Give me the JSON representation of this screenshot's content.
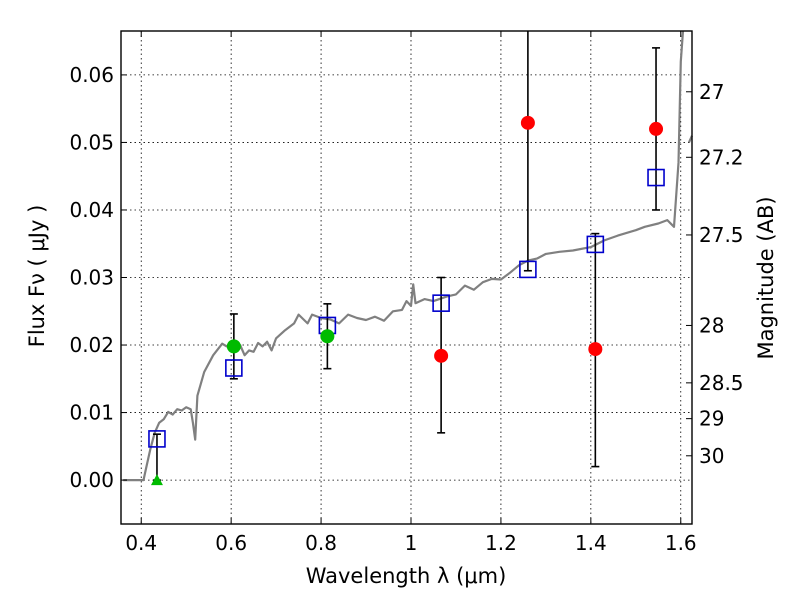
{
  "chart_data": {
    "type": "scatter",
    "xlabel": "Wavelength  λ (μm)",
    "ylabel": "Flux  Fν  ( μJy )",
    "ylabel_right": "Magnitude (AB)",
    "xlim": [
      0.355,
      1.625
    ],
    "ylim": [
      -0.0065,
      0.0665
    ],
    "grid": true,
    "x_ticks": [
      {
        "value": 0.4,
        "label": "0.4"
      },
      {
        "value": 0.6,
        "label": "0.6"
      },
      {
        "value": 0.8,
        "label": "0.8"
      },
      {
        "value": 1.0,
        "label": "1"
      },
      {
        "value": 1.2,
        "label": "1.2"
      },
      {
        "value": 1.4,
        "label": "1.4"
      },
      {
        "value": 1.6,
        "label": "1.6"
      }
    ],
    "y_ticks": [
      {
        "value": 0.0,
        "label": "0.00"
      },
      {
        "value": 0.01,
        "label": "0.01"
      },
      {
        "value": 0.02,
        "label": "0.02"
      },
      {
        "value": 0.03,
        "label": "0.03"
      },
      {
        "value": 0.04,
        "label": "0.04"
      },
      {
        "value": 0.05,
        "label": "0.05"
      },
      {
        "value": 0.06,
        "label": "0.06"
      }
    ],
    "right_ticks": [
      {
        "label": "27",
        "flux": 0.0575
      },
      {
        "label": "27.2",
        "flux": 0.0478
      },
      {
        "label": "27.5",
        "flux": 0.0363
      },
      {
        "label": "28",
        "flux": 0.0229
      },
      {
        "label": "28.5",
        "flux": 0.0144
      },
      {
        "label": "29",
        "flux": 0.0091
      },
      {
        "label": "30",
        "flux": 0.0036
      }
    ],
    "colors": {
      "observed": "#ff0000",
      "observed_alt": "#00bb00",
      "model_box": "#0000cc",
      "sed": "#808080",
      "errorbar": "#000000"
    },
    "model_points": [
      {
        "x": 0.435,
        "y": 0.0061
      },
      {
        "x": 0.606,
        "y": 0.0166
      },
      {
        "x": 0.814,
        "y": 0.0229
      },
      {
        "x": 1.067,
        "y": 0.0262
      },
      {
        "x": 1.26,
        "y": 0.0312
      },
      {
        "x": 1.41,
        "y": 0.0349
      },
      {
        "x": 1.545,
        "y": 0.0448
      }
    ],
    "observed_points": [
      {
        "x": 0.435,
        "y": 0.0,
        "err_low": 0.0,
        "err_high": 0.0068,
        "marker": "triangle",
        "color": "#00bb00"
      },
      {
        "x": 0.606,
        "y": 0.0198,
        "err_low": 0.0048,
        "err_high": 0.0048,
        "marker": "circle",
        "color": "#00bb00"
      },
      {
        "x": 0.814,
        "y": 0.0213,
        "err_low": 0.0048,
        "err_high": 0.0048,
        "marker": "circle",
        "color": "#00bb00"
      },
      {
        "x": 1.067,
        "y": 0.0184,
        "err_low": 0.0114,
        "err_high": 0.0116,
        "marker": "circle",
        "color": "#ff0000"
      },
      {
        "x": 1.26,
        "y": 0.0529,
        "err_low": 0.0219,
        "err_high": 0.0211,
        "marker": "circle",
        "color": "#ff0000"
      },
      {
        "x": 1.41,
        "y": 0.0194,
        "err_low": 0.0174,
        "err_high": 0.0171,
        "marker": "circle",
        "color": "#ff0000"
      },
      {
        "x": 1.545,
        "y": 0.052,
        "err_low": 0.012,
        "err_high": 0.012,
        "marker": "circle",
        "color": "#ff0000"
      }
    ],
    "sed_curve": [
      [
        0.36,
        0.0
      ],
      [
        0.385,
        0.0
      ],
      [
        0.405,
        0.0
      ],
      [
        0.41,
        0.0015
      ],
      [
        0.42,
        0.0045
      ],
      [
        0.43,
        0.007
      ],
      [
        0.44,
        0.0085
      ],
      [
        0.45,
        0.009
      ],
      [
        0.46,
        0.0101
      ],
      [
        0.47,
        0.0097
      ],
      [
        0.48,
        0.0105
      ],
      [
        0.49,
        0.0103
      ],
      [
        0.5,
        0.0108
      ],
      [
        0.51,
        0.0105
      ],
      [
        0.515,
        0.0085
      ],
      [
        0.52,
        0.006
      ],
      [
        0.525,
        0.0125
      ],
      [
        0.54,
        0.016
      ],
      [
        0.56,
        0.0185
      ],
      [
        0.58,
        0.0202
      ],
      [
        0.59,
        0.0198
      ],
      [
        0.6,
        0.0205
      ],
      [
        0.61,
        0.0195
      ],
      [
        0.62,
        0.02
      ],
      [
        0.63,
        0.0185
      ],
      [
        0.64,
        0.0192
      ],
      [
        0.65,
        0.019
      ],
      [
        0.66,
        0.0203
      ],
      [
        0.67,
        0.0198
      ],
      [
        0.68,
        0.0205
      ],
      [
        0.69,
        0.0192
      ],
      [
        0.7,
        0.021
      ],
      [
        0.72,
        0.0222
      ],
      [
        0.74,
        0.0232
      ],
      [
        0.75,
        0.0245
      ],
      [
        0.77,
        0.0232
      ],
      [
        0.78,
        0.0245
      ],
      [
        0.8,
        0.024
      ],
      [
        0.82,
        0.0238
      ],
      [
        0.84,
        0.0232
      ],
      [
        0.86,
        0.0245
      ],
      [
        0.88,
        0.024
      ],
      [
        0.9,
        0.0237
      ],
      [
        0.92,
        0.0242
      ],
      [
        0.94,
        0.0236
      ],
      [
        0.96,
        0.025
      ],
      [
        0.98,
        0.0252
      ],
      [
        0.99,
        0.0265
      ],
      [
        1.0,
        0.0258
      ],
      [
        1.005,
        0.029
      ],
      [
        1.01,
        0.0262
      ],
      [
        1.03,
        0.0268
      ],
      [
        1.05,
        0.0265
      ],
      [
        1.08,
        0.0272
      ],
      [
        1.1,
        0.0275
      ],
      [
        1.12,
        0.0288
      ],
      [
        1.14,
        0.0282
      ],
      [
        1.16,
        0.0293
      ],
      [
        1.18,
        0.0298
      ],
      [
        1.2,
        0.0297
      ],
      [
        1.22,
        0.0307
      ],
      [
        1.24,
        0.0318
      ],
      [
        1.26,
        0.0325
      ],
      [
        1.28,
        0.0328
      ],
      [
        1.3,
        0.0335
      ],
      [
        1.33,
        0.0338
      ],
      [
        1.36,
        0.034
      ],
      [
        1.4,
        0.0345
      ],
      [
        1.43,
        0.0355
      ],
      [
        1.46,
        0.0362
      ],
      [
        1.5,
        0.037
      ],
      [
        1.52,
        0.0375
      ],
      [
        1.55,
        0.038
      ],
      [
        1.57,
        0.0385
      ],
      [
        1.585,
        0.0375
      ],
      [
        1.595,
        0.047
      ],
      [
        1.6,
        0.062
      ],
      [
        1.605,
        0.072
      ]
    ]
  }
}
